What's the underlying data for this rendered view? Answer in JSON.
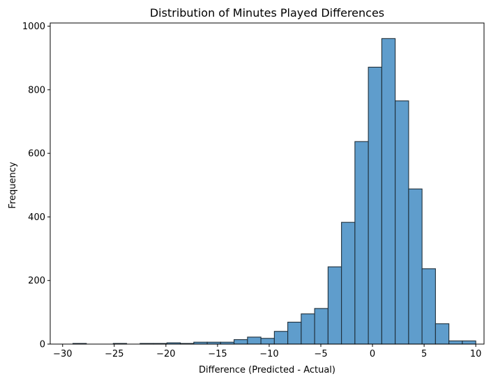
{
  "chart_data": {
    "type": "bar",
    "title": "Distribution of Minutes Played Differences",
    "xlabel": "Difference (Predicted - Actual)",
    "ylabel": "Frequency",
    "xlim": [
      -31.2,
      10.8
    ],
    "ylim": [
      0,
      1010
    ],
    "xticks": [
      -30,
      -25,
      -20,
      -15,
      -10,
      -5,
      0,
      5,
      10
    ],
    "xtick_labels": [
      "−30",
      "−25",
      "−20",
      "−15",
      "−10",
      "−5",
      "0",
      "5",
      "10"
    ],
    "yticks": [
      0,
      200,
      400,
      600,
      800,
      1000
    ],
    "ytick_labels": [
      "0",
      "200",
      "400",
      "600",
      "800",
      "1000"
    ],
    "grid": false,
    "bar_color": "#5f9dcc",
    "edge_color": "#1f2f3a",
    "bins": [
      {
        "x0": -29.0,
        "x1": -27.7,
        "value": 2
      },
      {
        "x0": -27.7,
        "x1": -26.4,
        "value": 0
      },
      {
        "x0": -26.4,
        "x1": -25.1,
        "value": 0
      },
      {
        "x0": -25.1,
        "x1": -23.8,
        "value": 2
      },
      {
        "x0": -23.8,
        "x1": -22.5,
        "value": 0
      },
      {
        "x0": -22.5,
        "x1": -21.2,
        "value": 2
      },
      {
        "x0": -21.2,
        "x1": -19.9,
        "value": 2
      },
      {
        "x0": -19.9,
        "x1": -18.6,
        "value": 4
      },
      {
        "x0": -18.6,
        "x1": -17.3,
        "value": 2
      },
      {
        "x0": -17.3,
        "x1": -16.0,
        "value": 6
      },
      {
        "x0": -16.0,
        "x1": -14.7,
        "value": 6
      },
      {
        "x0": -14.7,
        "x1": -13.4,
        "value": 6
      },
      {
        "x0": -13.4,
        "x1": -12.1,
        "value": 14
      },
      {
        "x0": -12.1,
        "x1": -10.8,
        "value": 22
      },
      {
        "x0": -10.8,
        "x1": -9.5,
        "value": 18
      },
      {
        "x0": -9.5,
        "x1": -8.2,
        "value": 40
      },
      {
        "x0": -8.2,
        "x1": -6.9,
        "value": 69
      },
      {
        "x0": -6.9,
        "x1": -5.6,
        "value": 95
      },
      {
        "x0": -5.6,
        "x1": -4.3,
        "value": 112
      },
      {
        "x0": -4.3,
        "x1": -3.0,
        "value": 243
      },
      {
        "x0": -3.0,
        "x1": -1.7,
        "value": 383
      },
      {
        "x0": -1.7,
        "x1": -0.4,
        "value": 637
      },
      {
        "x0": -0.4,
        "x1": 0.9,
        "value": 871
      },
      {
        "x0": 0.9,
        "x1": 2.2,
        "value": 961
      },
      {
        "x0": 2.2,
        "x1": 3.5,
        "value": 765
      },
      {
        "x0": 3.5,
        "x1": 4.8,
        "value": 488
      },
      {
        "x0": 4.8,
        "x1": 6.1,
        "value": 237
      },
      {
        "x0": 6.1,
        "x1": 7.4,
        "value": 64
      },
      {
        "x0": 7.4,
        "x1": 8.7,
        "value": 10
      },
      {
        "x0": 8.7,
        "x1": 10.0,
        "value": 10
      }
    ]
  }
}
